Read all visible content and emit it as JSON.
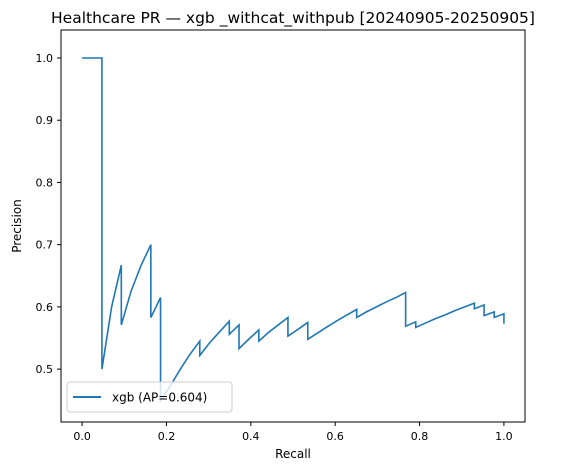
{
  "chart_data": {
    "type": "line",
    "title": "Healthcare PR — xgb _withcat_withpub [20240905-20250905]",
    "xlabel": "Recall",
    "ylabel": "Precision",
    "xlim": [
      -0.05,
      1.05
    ],
    "ylim": [
      0.415,
      1.045
    ],
    "xticks": [
      "0.0",
      "0.2",
      "0.4",
      "0.6",
      "0.8",
      "1.0"
    ],
    "yticks": [
      "0.5",
      "0.6",
      "0.7",
      "0.8",
      "0.9",
      "1.0"
    ],
    "grid": false,
    "legend_position": "lower-left",
    "series": [
      {
        "name": "xgb (AP=0.604)",
        "color": "#1f77b4",
        "points": [
          [
            0.0,
            1.0
          ],
          [
            0.047,
            1.0
          ],
          [
            0.047,
            0.5
          ],
          [
            0.07,
            0.6
          ],
          [
            0.093,
            0.667
          ],
          [
            0.093,
            0.571
          ],
          [
            0.116,
            0.625
          ],
          [
            0.14,
            0.667
          ],
          [
            0.163,
            0.7
          ],
          [
            0.163,
            0.583
          ],
          [
            0.186,
            0.615
          ],
          [
            0.186,
            0.45
          ],
          [
            0.21,
            0.474
          ],
          [
            0.233,
            0.5
          ],
          [
            0.256,
            0.524
          ],
          [
            0.279,
            0.545
          ],
          [
            0.279,
            0.522
          ],
          [
            0.302,
            0.542
          ],
          [
            0.326,
            0.56
          ],
          [
            0.349,
            0.577
          ],
          [
            0.349,
            0.556
          ],
          [
            0.372,
            0.571
          ],
          [
            0.372,
            0.533
          ],
          [
            0.395,
            0.548
          ],
          [
            0.419,
            0.563
          ],
          [
            0.419,
            0.545
          ],
          [
            0.442,
            0.559
          ],
          [
            0.465,
            0.571
          ],
          [
            0.488,
            0.583
          ],
          [
            0.488,
            0.553
          ],
          [
            0.512,
            0.564
          ],
          [
            0.535,
            0.575
          ],
          [
            0.535,
            0.548
          ],
          [
            0.558,
            0.558
          ],
          [
            0.581,
            0.568
          ],
          [
            0.605,
            0.578
          ],
          [
            0.628,
            0.587
          ],
          [
            0.651,
            0.596
          ],
          [
            0.651,
            0.583
          ],
          [
            0.674,
            0.592
          ],
          [
            0.698,
            0.6
          ],
          [
            0.721,
            0.608
          ],
          [
            0.744,
            0.615
          ],
          [
            0.767,
            0.623
          ],
          [
            0.767,
            0.569
          ],
          [
            0.791,
            0.576
          ],
          [
            0.791,
            0.567
          ],
          [
            0.814,
            0.574
          ],
          [
            0.837,
            0.581
          ],
          [
            0.86,
            0.587
          ],
          [
            0.884,
            0.594
          ],
          [
            0.907,
            0.6
          ],
          [
            0.93,
            0.606
          ],
          [
            0.93,
            0.597
          ],
          [
            0.953,
            0.603
          ],
          [
            0.953,
            0.586
          ],
          [
            0.977,
            0.592
          ],
          [
            0.977,
            0.583
          ],
          [
            1.0,
            0.589
          ],
          [
            1.0,
            0.573
          ]
        ]
      }
    ]
  }
}
